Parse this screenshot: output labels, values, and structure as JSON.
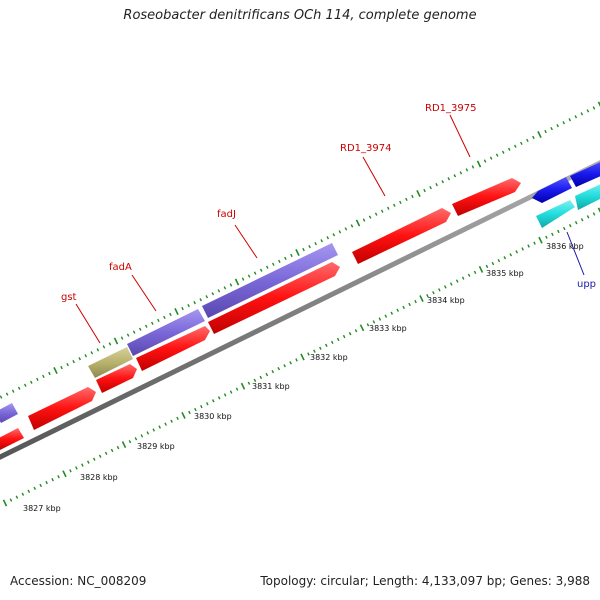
{
  "title": "Roseobacter denitrificans OCh 114, complete genome",
  "footer": {
    "accession": "Accession: NC_008209",
    "summary": "Topology: circular; Length: 4,133,097 bp; Genes: 3,988"
  },
  "genes": [
    {
      "name": "gst",
      "color": "#b8b26e",
      "label_color": "#cc0000"
    },
    {
      "name": "fadA",
      "color": "#7b68d8",
      "label_color": "#cc0000"
    },
    {
      "name": "fadJ",
      "color": "#7b68d8",
      "label_color": "#cc0000"
    },
    {
      "name": "RD1_3974",
      "color": "#ff1111",
      "label_color": "#cc0000"
    },
    {
      "name": "RD1_3975",
      "color": "#ff1111",
      "label_color": "#cc0000"
    },
    {
      "name": "upp",
      "color": "#22dddd",
      "label_color": "#1a1aaa"
    }
  ],
  "scale": {
    "unit": "kbp",
    "ticks": [
      "3827 kbp",
      "3828 kbp",
      "3829 kbp",
      "3830 kbp",
      "3831 kbp",
      "3832 kbp",
      "3833 kbp",
      "3834 kbp",
      "3835 kbp",
      "3836 kbp"
    ]
  },
  "colors": {
    "backbone": "#888888",
    "forward_red": "#ff1111",
    "reverse_red": "#ff1111",
    "purple": "#7b68d8",
    "olive": "#b8b26e",
    "blue": "#1a1aee",
    "cyan": "#22dddd",
    "tick_green": "#228b22"
  }
}
